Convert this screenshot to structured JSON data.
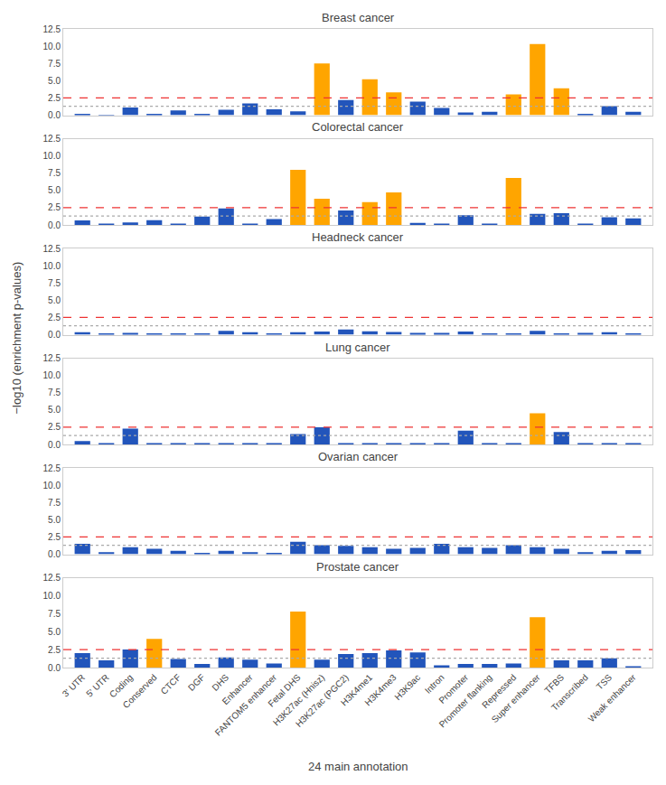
{
  "chart_data": [
    {
      "type": "bar",
      "title": "Breast cancer",
      "ylabel": "−log10 (enrichment p-values)",
      "categories": [
        "3' UTR",
        "5' UTR",
        "Coding",
        "Conserved",
        "CTCF",
        "DGF",
        "DHS",
        "Enhancer",
        "FANTOM5 enhancer",
        "Fetal DHS",
        "H3K27ac (Hnisz)",
        "H3K27ac (PGC2)",
        "H3K4me1",
        "H3K4me3",
        "H3K9ac",
        "Intron",
        "Promoter",
        "Promoter flanking",
        "Repressed",
        "Super enhancer",
        "TFBS",
        "Transcribed",
        "TSS",
        "Weak enhancer"
      ],
      "values": [
        0.1,
        0.05,
        1.1,
        0.2,
        0.7,
        0.12,
        0.8,
        1.7,
        0.85,
        0.55,
        7.5,
        2.2,
        5.2,
        3.3,
        1.95,
        1.05,
        0.4,
        0.5,
        3.0,
        10.3,
        3.9,
        0.1,
        1.3,
        0.5
      ],
      "colors": [
        "#2255bb",
        "#2255bb",
        "#2255bb",
        "#2255bb",
        "#2255bb",
        "#2255bb",
        "#2255bb",
        "#2255bb",
        "#2255bb",
        "#2255bb",
        "#FFA500",
        "#2255bb",
        "#FFA500",
        "#FFA500",
        "#2255bb",
        "#2255bb",
        "#2255bb",
        "#2255bb",
        "#FFA500",
        "#FFA500",
        "#FFA500",
        "#2255bb",
        "#2255bb",
        "#2255bb"
      ],
      "ylim": [
        0,
        12.5
      ],
      "yticks": [
        {
          "value": 0,
          "label": "0.0"
        },
        2.5,
        {
          "value": 5,
          "label": "5.0"
        },
        7.5,
        {
          "value": 10,
          "label": "10.0"
        },
        12.5
      ],
      "reference_lines": [
        {
          "value": 2.5,
          "color": "#EE3333",
          "line_style": "dashed"
        },
        {
          "value": 1.3,
          "color": "#aaaaaa",
          "line_style": "dotted"
        }
      ],
      "grid": false,
      "tick_labels": "y"
    },
    {
      "type": "bar",
      "title": "Colorectal cancer",
      "categories": [
        "3' UTR",
        "5' UTR",
        "Coding",
        "Conserved",
        "CTCF",
        "DGF",
        "DHS",
        "Enhancer",
        "FANTOM5 enhancer",
        "Fetal DHS",
        "H3K27ac (Hnisz)",
        "H3K27ac (PGC2)",
        "H3K4me1",
        "H3K4me3",
        "H3K9ac",
        "Intron",
        "Promoter",
        "Promoter flanking",
        "Repressed",
        "Super enhancer",
        "TFBS",
        "Transcribed",
        "TSS",
        "Weak enhancer"
      ],
      "values": [
        0.65,
        0.15,
        0.35,
        0.7,
        0.15,
        1.2,
        2.4,
        0.2,
        0.85,
        8.0,
        3.8,
        2.1,
        3.3,
        4.7,
        0.3,
        0.2,
        1.4,
        0.15,
        6.8,
        1.6,
        1.7,
        0.2,
        1.1,
        0.95
      ],
      "colors": [
        "#2255bb",
        "#2255bb",
        "#2255bb",
        "#2255bb",
        "#2255bb",
        "#2255bb",
        "#2255bb",
        "#2255bb",
        "#2255bb",
        "#FFA500",
        "#FFA500",
        "#2255bb",
        "#FFA500",
        "#FFA500",
        "#2255bb",
        "#2255bb",
        "#2255bb",
        "#2255bb",
        "#FFA500",
        "#2255bb",
        "#2255bb",
        "#2255bb",
        "#2255bb",
        "#2255bb"
      ],
      "ylim": [
        0,
        12.5
      ],
      "yticks": [
        {
          "value": 0,
          "label": "0.0"
        },
        2.5,
        {
          "value": 5,
          "label": "5.0"
        },
        7.5,
        {
          "value": 10,
          "label": "10.0"
        },
        12.5
      ],
      "reference_lines": [
        {
          "value": 2.5,
          "color": "#EE3333",
          "line_style": "dashed"
        },
        {
          "value": 1.3,
          "color": "#aaaaaa",
          "line_style": "dotted"
        }
      ],
      "grid": false,
      "tick_labels": "y"
    },
    {
      "type": "bar",
      "title": "Headneck cancer",
      "categories": [
        "3' UTR",
        "5' UTR",
        "Coding",
        "Conserved",
        "CTCF",
        "DGF",
        "DHS",
        "Enhancer",
        "FANTOM5 enhancer",
        "Fetal DHS",
        "H3K27ac (Hnisz)",
        "H3K27ac (PGC2)",
        "H3K4me1",
        "H3K4me3",
        "H3K9ac",
        "Intron",
        "Promoter",
        "Promoter flanking",
        "Repressed",
        "Super enhancer",
        "TFBS",
        "Transcribed",
        "TSS",
        "Weak enhancer"
      ],
      "values": [
        0.35,
        0.08,
        0.25,
        0.1,
        0.1,
        0.08,
        0.55,
        0.35,
        0.08,
        0.35,
        0.45,
        0.75,
        0.5,
        0.4,
        0.25,
        0.25,
        0.45,
        0.12,
        0.12,
        0.55,
        0.15,
        0.25,
        0.35,
        0.1
      ],
      "colors": [
        "#2255bb",
        "#2255bb",
        "#2255bb",
        "#2255bb",
        "#2255bb",
        "#2255bb",
        "#2255bb",
        "#2255bb",
        "#2255bb",
        "#2255bb",
        "#2255bb",
        "#2255bb",
        "#2255bb",
        "#2255bb",
        "#2255bb",
        "#2255bb",
        "#2255bb",
        "#2255bb",
        "#2255bb",
        "#2255bb",
        "#2255bb",
        "#2255bb",
        "#2255bb",
        "#2255bb"
      ],
      "ylim": [
        0,
        12.5
      ],
      "yticks": [
        {
          "value": 0,
          "label": "0.0"
        },
        2.5,
        {
          "value": 5,
          "label": "5.0"
        },
        7.5,
        {
          "value": 10,
          "label": "10.0"
        },
        12.5
      ],
      "reference_lines": [
        {
          "value": 2.5,
          "color": "#EE3333",
          "line_style": "dashed"
        },
        {
          "value": 1.3,
          "color": "#aaaaaa",
          "line_style": "dotted"
        }
      ],
      "grid": false,
      "tick_labels": "y"
    },
    {
      "type": "bar",
      "title": "Lung cancer",
      "categories": [
        "3' UTR",
        "5' UTR",
        "Coding",
        "Conserved",
        "CTCF",
        "DGF",
        "DHS",
        "Enhancer",
        "FANTOM5 enhancer",
        "Fetal DHS",
        "H3K27ac (Hnisz)",
        "H3K27ac (PGC2)",
        "H3K4me1",
        "H3K4me3",
        "H3K9ac",
        "Intron",
        "Promoter",
        "Promoter flanking",
        "Repressed",
        "Super enhancer",
        "TFBS",
        "Transcribed",
        "TSS",
        "Weak enhancer"
      ],
      "values": [
        0.5,
        0.12,
        2.3,
        0.12,
        0.12,
        0.12,
        0.12,
        0.12,
        0.12,
        1.5,
        2.5,
        0.12,
        0.12,
        0.12,
        0.12,
        0.12,
        2.0,
        0.12,
        0.12,
        4.5,
        1.8,
        0.12,
        0.12,
        0.12
      ],
      "colors": [
        "#2255bb",
        "#2255bb",
        "#2255bb",
        "#2255bb",
        "#2255bb",
        "#2255bb",
        "#2255bb",
        "#2255bb",
        "#2255bb",
        "#2255bb",
        "#2255bb",
        "#2255bb",
        "#2255bb",
        "#2255bb",
        "#2255bb",
        "#2255bb",
        "#2255bb",
        "#2255bb",
        "#2255bb",
        "#FFA500",
        "#2255bb",
        "#2255bb",
        "#2255bb",
        "#2255bb"
      ],
      "ylim": [
        0,
        12.5
      ],
      "yticks": [
        {
          "value": 0,
          "label": "0.0"
        },
        2.5,
        {
          "value": 5,
          "label": "5.0"
        },
        7.5,
        {
          "value": 10,
          "label": "10.0"
        },
        12.5
      ],
      "reference_lines": [
        {
          "value": 2.5,
          "color": "#EE3333",
          "line_style": "dashed"
        },
        {
          "value": 1.3,
          "color": "#aaaaaa",
          "line_style": "dotted"
        }
      ],
      "grid": false,
      "tick_labels": "y"
    },
    {
      "type": "bar",
      "title": "Ovarian cancer",
      "categories": [
        "3' UTR",
        "5' UTR",
        "Coding",
        "Conserved",
        "CTCF",
        "DGF",
        "DHS",
        "Enhancer",
        "FANTOM5 enhancer",
        "Fetal DHS",
        "H3K27ac (Hnisz)",
        "H3K27ac (PGC2)",
        "H3K4me1",
        "H3K4me3",
        "H3K9ac",
        "Intron",
        "Promoter",
        "Promoter flanking",
        "Repressed",
        "Super enhancer",
        "TFBS",
        "Transcribed",
        "TSS",
        "Weak enhancer"
      ],
      "values": [
        1.5,
        0.3,
        1.0,
        0.8,
        0.5,
        0.2,
        0.5,
        0.3,
        0.12,
        1.8,
        1.3,
        1.2,
        1.0,
        0.8,
        0.9,
        1.5,
        1.0,
        0.9,
        1.3,
        1.0,
        0.8,
        0.3,
        0.5,
        0.6
      ],
      "colors": [
        "#2255bb",
        "#2255bb",
        "#2255bb",
        "#2255bb",
        "#2255bb",
        "#2255bb",
        "#2255bb",
        "#2255bb",
        "#2255bb",
        "#2255bb",
        "#2255bb",
        "#2255bb",
        "#2255bb",
        "#2255bb",
        "#2255bb",
        "#2255bb",
        "#2255bb",
        "#2255bb",
        "#2255bb",
        "#2255bb",
        "#2255bb",
        "#2255bb",
        "#2255bb",
        "#2255bb"
      ],
      "ylim": [
        0,
        12.5
      ],
      "yticks": [
        {
          "value": 0,
          "label": "0.0"
        },
        2.5,
        {
          "value": 5,
          "label": "5.0"
        },
        7.5,
        {
          "value": 10,
          "label": "10.0"
        },
        12.5
      ],
      "reference_lines": [
        {
          "value": 2.5,
          "color": "#EE3333",
          "line_style": "dashed"
        },
        {
          "value": 1.3,
          "color": "#aaaaaa",
          "line_style": "dotted"
        }
      ],
      "grid": false,
      "tick_labels": "y"
    },
    {
      "type": "bar",
      "title": "Prostate cancer",
      "xlabel": "24 main annotation",
      "categories": [
        "3' UTR",
        "5' UTR",
        "Coding",
        "Conserved",
        "CTCF",
        "DGF",
        "DHS",
        "Enhancer",
        "FANTOM5 enhancer",
        "Fetal DHS",
        "H3K27ac (Hnisz)",
        "H3K27ac (PGC2)",
        "H3K4me1",
        "H3K4me3",
        "H3K9ac",
        "Intron",
        "Promoter",
        "Promoter flanking",
        "Repressed",
        "Super enhancer",
        "TFBS",
        "Transcribed",
        "TSS",
        "Weak enhancer"
      ],
      "values": [
        2.0,
        1.0,
        2.5,
        4.0,
        1.2,
        0.5,
        1.4,
        1.1,
        0.55,
        7.8,
        1.1,
        1.9,
        2.0,
        2.4,
        2.1,
        0.3,
        0.5,
        0.5,
        0.55,
        7.0,
        1.0,
        1.0,
        1.3,
        0.15
      ],
      "colors": [
        "#2255bb",
        "#2255bb",
        "#2255bb",
        "#FFA500",
        "#2255bb",
        "#2255bb",
        "#2255bb",
        "#2255bb",
        "#2255bb",
        "#FFA500",
        "#2255bb",
        "#2255bb",
        "#2255bb",
        "#2255bb",
        "#2255bb",
        "#2255bb",
        "#2255bb",
        "#2255bb",
        "#2255bb",
        "#FFA500",
        "#2255bb",
        "#2255bb",
        "#2255bb",
        "#2255bb"
      ],
      "ylim": [
        0,
        12.5
      ],
      "yticks": [
        {
          "value": 0,
          "label": "0.0"
        },
        2.5,
        {
          "value": 5,
          "label": "5.0"
        },
        7.5,
        {
          "value": 10,
          "label": "10.0"
        },
        12.5
      ],
      "reference_lines": [
        {
          "value": 2.5,
          "color": "#EE3333",
          "line_style": "dashed"
        },
        {
          "value": 1.3,
          "color": "#aaaaaa",
          "line_style": "dotted"
        }
      ],
      "grid": false
    }
  ]
}
